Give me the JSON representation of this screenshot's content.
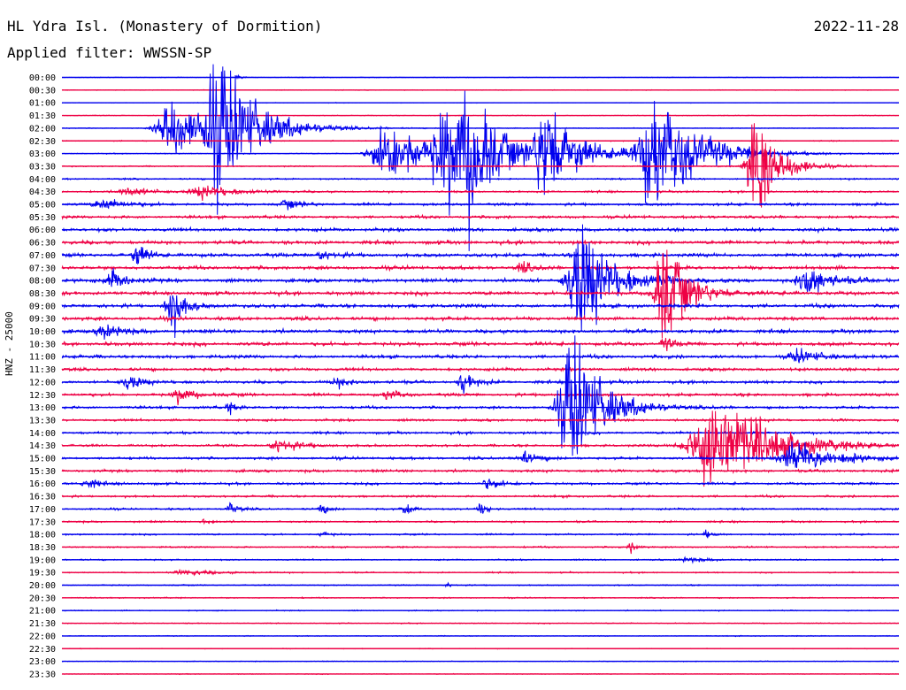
{
  "header": {
    "station": "HL Ydra Isl. (Monastery of Dormition)",
    "date": "2022-11-28",
    "filter": "Applied filter: WWSSN-SP"
  },
  "chart_data": {
    "type": "helicorder",
    "title": "HL Ydra Isl. (Monastery of Dormition)",
    "ylabel": "HNZ - 25000",
    "colors": [
      "#0000ee",
      "#ee0044"
    ],
    "rows": [
      "00:00",
      "00:30",
      "01:00",
      "01:30",
      "02:00",
      "02:30",
      "03:00",
      "03:30",
      "04:00",
      "04:30",
      "05:00",
      "05:30",
      "06:00",
      "06:30",
      "07:00",
      "07:30",
      "08:00",
      "08:30",
      "09:00",
      "09:30",
      "10:00",
      "10:30",
      "11:00",
      "11:30",
      "12:00",
      "12:30",
      "13:00",
      "13:30",
      "14:00",
      "14:30",
      "15:00",
      "15:30",
      "16:00",
      "16:30",
      "17:00",
      "17:30",
      "18:00",
      "18:30",
      "19:00",
      "19:30",
      "20:00",
      "20:30",
      "21:00",
      "21:30",
      "22:00",
      "22:30",
      "23:00",
      "23:30"
    ],
    "noise_level": [
      0.5,
      0.6,
      0.5,
      0.6,
      0.7,
      0.8,
      0.8,
      1.0,
      1.3,
      1.6,
      2.2,
      2.4,
      2.8,
      3.0,
      3.0,
      3.0,
      3.0,
      3.0,
      3.0,
      3.0,
      3.0,
      3.0,
      2.8,
      2.6,
      2.5,
      2.4,
      2.2,
      2.0,
      2.0,
      2.0,
      2.2,
      2.2,
      2.0,
      1.8,
      1.6,
      1.5,
      1.4,
      1.3,
      1.2,
      1.1,
      1.0,
      1.0,
      0.9,
      0.8,
      0.7,
      0.6,
      0.6,
      0.6
    ],
    "events": [
      {
        "row": 0,
        "x": 0.21,
        "amp": 6,
        "width": 0.004
      },
      {
        "row": 4,
        "x": 0.13,
        "amp": 60,
        "width": 0.04
      },
      {
        "row": 4,
        "x": 0.19,
        "amp": 120,
        "width": 0.05
      },
      {
        "row": 6,
        "x": 0.39,
        "amp": 60,
        "width": 0.05
      },
      {
        "row": 6,
        "x": 0.46,
        "amp": 90,
        "width": 0.04
      },
      {
        "row": 6,
        "x": 0.49,
        "amp": 80,
        "width": 0.04
      },
      {
        "row": 6,
        "x": 0.58,
        "amp": 90,
        "width": 0.04
      },
      {
        "row": 6,
        "x": 0.71,
        "amp": 100,
        "width": 0.06
      },
      {
        "row": 7,
        "x": 0.83,
        "amp": 100,
        "width": 0.03
      },
      {
        "row": 9,
        "x": 0.08,
        "amp": 8,
        "width": 0.03
      },
      {
        "row": 9,
        "x": 0.17,
        "amp": 12,
        "width": 0.04
      },
      {
        "row": 10,
        "x": 0.05,
        "amp": 10,
        "width": 0.03
      },
      {
        "row": 10,
        "x": 0.27,
        "amp": 8,
        "width": 0.02
      },
      {
        "row": 14,
        "x": 0.09,
        "amp": 20,
        "width": 0.015
      },
      {
        "row": 14,
        "x": 0.31,
        "amp": 8,
        "width": 0.02
      },
      {
        "row": 15,
        "x": 0.55,
        "amp": 10,
        "width": 0.015
      },
      {
        "row": 16,
        "x": 0.06,
        "amp": 20,
        "width": 0.02
      },
      {
        "row": 16,
        "x": 0.62,
        "amp": 110,
        "width": 0.04
      },
      {
        "row": 16,
        "x": 0.89,
        "amp": 30,
        "width": 0.03
      },
      {
        "row": 17,
        "x": 0.72,
        "amp": 100,
        "width": 0.03
      },
      {
        "row": 18,
        "x": 0.13,
        "amp": 60,
        "width": 0.015
      },
      {
        "row": 20,
        "x": 0.05,
        "amp": 15,
        "width": 0.02
      },
      {
        "row": 21,
        "x": 0.72,
        "amp": 15,
        "width": 0.01
      },
      {
        "row": 22,
        "x": 0.88,
        "amp": 12,
        "width": 0.03
      },
      {
        "row": 24,
        "x": 0.08,
        "amp": 14,
        "width": 0.02
      },
      {
        "row": 24,
        "x": 0.33,
        "amp": 8,
        "width": 0.02
      },
      {
        "row": 24,
        "x": 0.48,
        "amp": 20,
        "width": 0.015
      },
      {
        "row": 25,
        "x": 0.14,
        "amp": 14,
        "width": 0.02
      },
      {
        "row": 25,
        "x": 0.39,
        "amp": 10,
        "width": 0.015
      },
      {
        "row": 26,
        "x": 0.2,
        "amp": 10,
        "width": 0.01
      },
      {
        "row": 26,
        "x": 0.61,
        "amp": 130,
        "width": 0.04
      },
      {
        "row": 29,
        "x": 0.26,
        "amp": 12,
        "width": 0.03
      },
      {
        "row": 29,
        "x": 0.78,
        "amp": 95,
        "width": 0.07
      },
      {
        "row": 30,
        "x": 0.55,
        "amp": 12,
        "width": 0.02
      },
      {
        "row": 30,
        "x": 0.88,
        "amp": 30,
        "width": 0.05
      },
      {
        "row": 32,
        "x": 0.03,
        "amp": 8,
        "width": 0.02
      },
      {
        "row": 32,
        "x": 0.51,
        "amp": 10,
        "width": 0.02
      },
      {
        "row": 34,
        "x": 0.2,
        "amp": 12,
        "width": 0.01
      },
      {
        "row": 34,
        "x": 0.31,
        "amp": 10,
        "width": 0.01
      },
      {
        "row": 34,
        "x": 0.41,
        "amp": 12,
        "width": 0.01
      },
      {
        "row": 34,
        "x": 0.5,
        "amp": 12,
        "width": 0.01
      },
      {
        "row": 35,
        "x": 0.17,
        "amp": 6,
        "width": 0.01
      },
      {
        "row": 36,
        "x": 0.31,
        "amp": 5,
        "width": 0.01
      },
      {
        "row": 36,
        "x": 0.77,
        "amp": 6,
        "width": 0.01
      },
      {
        "row": 37,
        "x": 0.68,
        "amp": 8,
        "width": 0.01
      },
      {
        "row": 38,
        "x": 0.75,
        "amp": 4,
        "width": 0.03
      },
      {
        "row": 39,
        "x": 0.15,
        "amp": 4,
        "width": 0.05
      },
      {
        "row": 40,
        "x": 0.46,
        "amp": 6,
        "width": 0.005
      }
    ]
  }
}
